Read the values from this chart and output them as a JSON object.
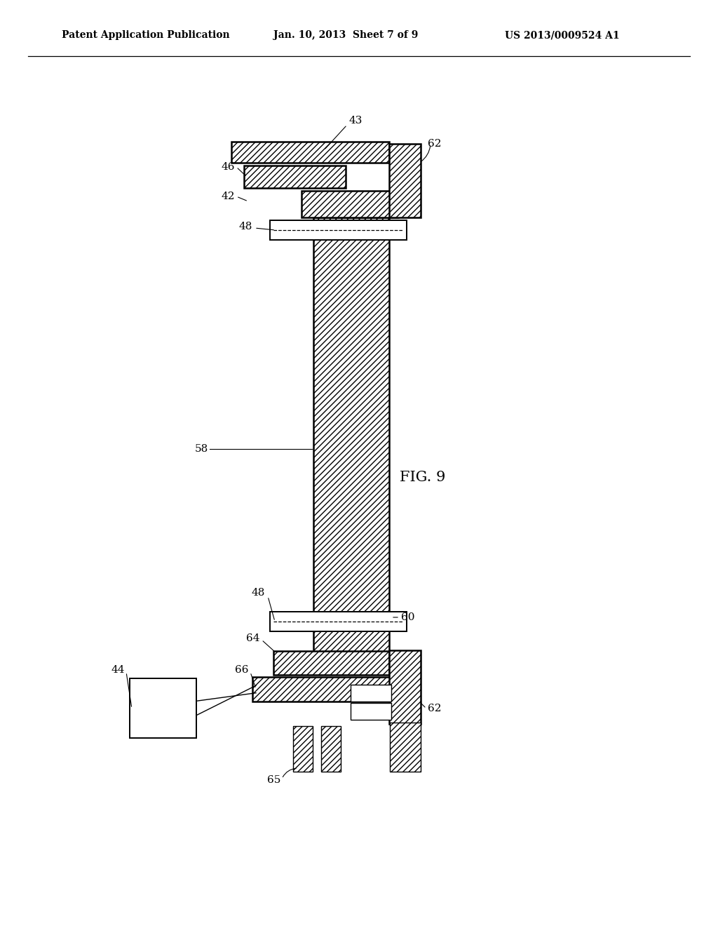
{
  "title_line1": "Patent Application Publication",
  "title_line2": "Jan. 10, 2013  Sheet 7 of 9",
  "title_line3": "US 2013/0009524 A1",
  "fig_label": "FIG. 9",
  "bg_color": "#ffffff",
  "hatch_color": "#000000",
  "line_color": "#000000",
  "hatch_pattern": "////",
  "header_fontsize": 10,
  "label_fontsize": 11,
  "fig9_fontsize": 15
}
